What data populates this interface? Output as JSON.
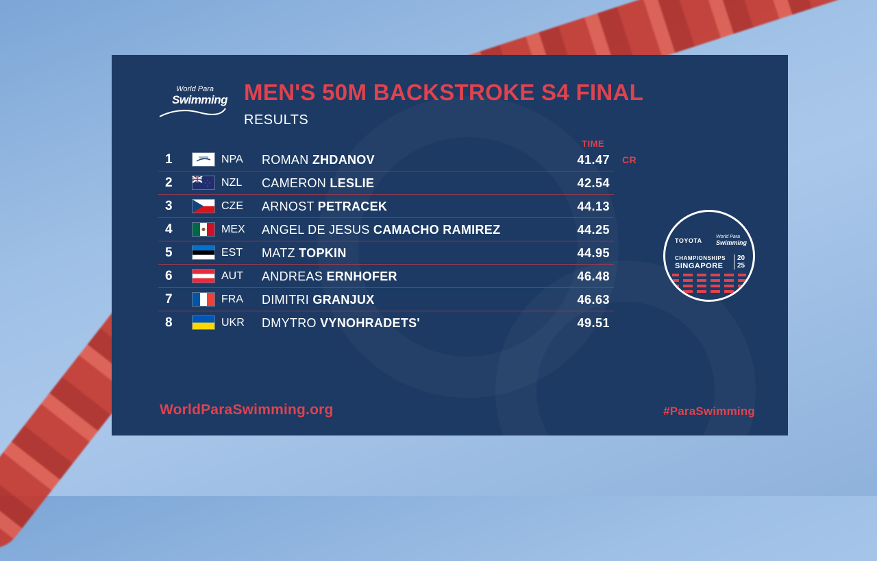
{
  "header": {
    "logo_top": "World Para",
    "logo_main": "Swimming",
    "title": "MEN'S 50M BACKSTROKE S4 FINAL",
    "subtitle": "RESULTS",
    "time_column": "TIME"
  },
  "results": [
    {
      "rank": "1",
      "code": "NPA",
      "first": "ROMAN",
      "last": "ZHDANOV",
      "time": "41.47",
      "record": "CR",
      "flag": "npa-flag"
    },
    {
      "rank": "2",
      "code": "NZL",
      "first": "CAMERON",
      "last": "LESLIE",
      "time": "42.54",
      "flag": "new-zealand-flag"
    },
    {
      "rank": "3",
      "code": "CZE",
      "first": "ARNOST",
      "last": "PETRACEK",
      "time": "44.13",
      "flag": "czech-flag"
    },
    {
      "rank": "4",
      "code": "MEX",
      "first": "ANGEL DE JESUS",
      "last": "CAMACHO RAMIREZ",
      "time": "44.25",
      "flag": "mexico-flag"
    },
    {
      "rank": "5",
      "code": "EST",
      "first": "MATZ",
      "last": "TOPKIN",
      "time": "44.95",
      "flag": "estonia-flag"
    },
    {
      "rank": "6",
      "code": "AUT",
      "first": "ANDREAS",
      "last": "ERNHOFER",
      "time": "46.48",
      "flag": "austria-flag"
    },
    {
      "rank": "7",
      "code": "FRA",
      "first": "DIMITRI",
      "last": "GRANJUX",
      "time": "46.63",
      "flag": "france-flag"
    },
    {
      "rank": "8",
      "code": "UKR",
      "first": "DMYTRO",
      "last": "VYNOHRADETS'",
      "time": "49.51",
      "flag": "ukraine-flag"
    }
  ],
  "badge": {
    "sponsor": "TOYOTA",
    "wps_top": "World Para",
    "wps_main": "Swimming",
    "championships": "CHAMPIONSHIPS",
    "city": "SINGAPORE",
    "year_top": "20",
    "year_bottom": "25"
  },
  "footer": {
    "website": "WorldParaSwimming.org",
    "hashtag": "#ParaSwimming"
  },
  "colors": {
    "panel": "#1c3a63",
    "accent_red": "#e0424e",
    "row_divider": "#8b3b52",
    "text": "#ffffff"
  }
}
